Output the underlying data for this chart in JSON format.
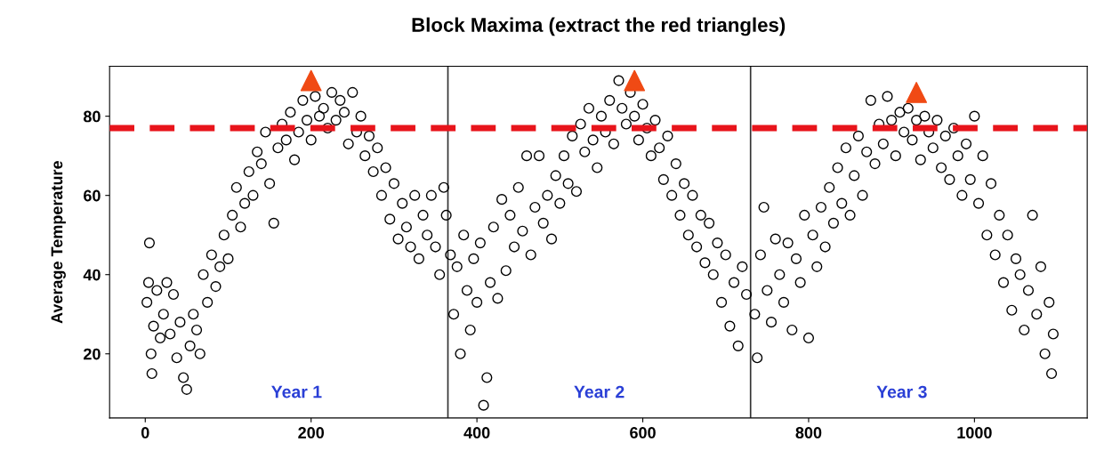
{
  "chart_data": {
    "type": "scatter",
    "title": "Block Maxima (extract the red triangles)",
    "ylabel": "Average Temperature",
    "xlim": [
      -43,
      1136
    ],
    "ylim": [
      3.8,
      92.6
    ],
    "xticks": [
      0,
      200,
      400,
      600,
      800,
      1000
    ],
    "yticks": [
      20,
      40,
      60,
      80
    ],
    "grid": false,
    "legend": false,
    "marker": "circle",
    "series": [
      {
        "color": "#000000",
        "x": [
          2,
          4,
          5,
          7,
          8,
          10,
          14,
          18,
          22,
          26,
          30,
          34,
          38,
          42,
          46,
          50,
          54,
          58,
          62,
          66,
          70,
          75,
          80,
          85,
          90,
          95,
          100,
          105,
          110,
          115,
          120,
          125,
          130,
          135,
          140,
          145,
          150,
          155,
          160,
          165,
          170,
          175,
          180,
          185,
          190,
          195,
          200,
          205,
          210,
          215,
          220,
          225,
          230,
          235,
          240,
          245,
          250,
          255,
          260,
          265,
          270,
          275,
          280,
          285,
          290,
          295,
          300,
          305,
          310,
          315,
          320,
          325,
          330,
          335,
          340,
          345,
          350,
          355,
          360,
          363
        ],
        "values": [
          33,
          38,
          48,
          20,
          15,
          27,
          36,
          24,
          30,
          38,
          25,
          35,
          19,
          28,
          14,
          11,
          22,
          30,
          26,
          20,
          40,
          33,
          45,
          37,
          42,
          50,
          44,
          55,
          62,
          52,
          58,
          66,
          60,
          71,
          68,
          76,
          63,
          53,
          72,
          78,
          74,
          81,
          69,
          76,
          84,
          79,
          74,
          85,
          80,
          82,
          77,
          86,
          79,
          84,
          81,
          73,
          86,
          76,
          80,
          70,
          75,
          66,
          72,
          60,
          67,
          54,
          63,
          49,
          58,
          52,
          47,
          60,
          44,
          55,
          50,
          60,
          47,
          40,
          62,
          55
        ]
      },
      {
        "color": "#000000",
        "x": [
          368,
          372,
          376,
          380,
          384,
          388,
          392,
          396,
          400,
          404,
          408,
          412,
          416,
          420,
          425,
          430,
          435,
          440,
          445,
          450,
          455,
          460,
          465,
          470,
          475,
          480,
          485,
          490,
          495,
          500,
          505,
          510,
          515,
          520,
          525,
          530,
          535,
          540,
          545,
          550,
          555,
          560,
          565,
          571,
          575,
          580,
          585,
          590,
          595,
          600,
          605,
          610,
          615,
          620,
          625,
          630,
          635,
          640,
          645,
          650,
          655,
          660,
          665,
          670,
          675,
          680,
          685,
          690,
          695,
          700,
          705,
          710,
          715,
          720,
          725
        ],
        "values": [
          45,
          30,
          42,
          20,
          50,
          36,
          26,
          44,
          33,
          48,
          7,
          14,
          38,
          52,
          34,
          59,
          41,
          55,
          47,
          62,
          51,
          70,
          45,
          57,
          70,
          53,
          60,
          49,
          65,
          58,
          70,
          63,
          75,
          61,
          78,
          71,
          82,
          74,
          67,
          80,
          76,
          84,
          73,
          89,
          82,
          78,
          86,
          80,
          74,
          83,
          77,
          70,
          79,
          72,
          64,
          75,
          60,
          68,
          55,
          63,
          50,
          60,
          47,
          55,
          43,
          53,
          40,
          48,
          33,
          45,
          27,
          38,
          22,
          42,
          35
        ]
      },
      {
        "color": "#000000",
        "x": [
          735,
          738,
          742,
          746,
          750,
          755,
          760,
          765,
          770,
          775,
          780,
          785,
          790,
          795,
          800,
          805,
          810,
          815,
          820,
          825,
          830,
          835,
          840,
          845,
          850,
          855,
          860,
          865,
          870,
          875,
          880,
          885,
          890,
          895,
          900,
          905,
          910,
          915,
          920,
          925,
          930,
          935,
          940,
          945,
          950,
          955,
          960,
          965,
          970,
          975,
          980,
          985,
          990,
          995,
          1000,
          1005,
          1010,
          1015,
          1020,
          1025,
          1030,
          1035,
          1040,
          1045,
          1050,
          1055,
          1060,
          1065,
          1070,
          1075,
          1080,
          1085,
          1090,
          1093,
          1095
        ],
        "values": [
          30,
          19,
          45,
          57,
          36,
          28,
          49,
          40,
          33,
          48,
          26,
          44,
          38,
          55,
          24,
          50,
          42,
          57,
          47,
          62,
          53,
          67,
          58,
          72,
          55,
          65,
          75,
          60,
          71,
          84,
          68,
          78,
          73,
          85,
          79,
          70,
          81,
          76,
          82,
          74,
          79,
          69,
          80,
          76,
          72,
          79,
          67,
          75,
          64,
          77,
          70,
          60,
          73,
          64,
          80,
          58,
          70,
          50,
          63,
          45,
          55,
          38,
          50,
          31,
          44,
          40,
          26,
          36,
          55,
          30,
          42,
          20,
          33,
          15,
          25
        ]
      },
      {
        "color": "#f04a14",
        "marker": "triangle",
        "x": [
          200,
          590,
          930
        ],
        "values": [
          89,
          89,
          86
        ]
      }
    ],
    "ref_lines": [
      {
        "axis": "y",
        "value": 77,
        "color": "#e8141b",
        "line_style": "dashed"
      },
      {
        "axis": "x",
        "value": 365,
        "color": "#333333",
        "line_style": "solid"
      },
      {
        "axis": "x",
        "value": 730,
        "color": "#333333",
        "line_style": "solid"
      }
    ],
    "annotations": [
      "Year 1",
      "Year 2",
      "Year 3"
    ]
  }
}
